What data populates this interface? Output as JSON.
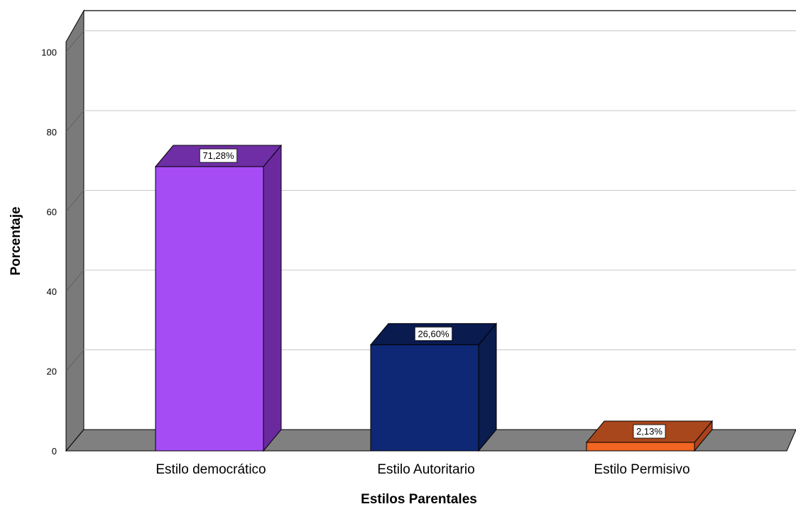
{
  "chart_data": {
    "type": "bar",
    "title": "",
    "xlabel": "Estilos Parentales",
    "ylabel": "Porcentaje",
    "categories": [
      "Estilo democrático",
      "Estilo Autoritario",
      "Estilo Permisivo"
    ],
    "values": [
      71.28,
      26.6,
      2.13
    ],
    "data_labels": [
      "71,28%",
      "26,60%",
      "2,13%"
    ],
    "y_ticks": [
      "0",
      "20",
      "40",
      "60",
      "80",
      "100"
    ],
    "ylim": [
      0,
      110
    ],
    "grid": true,
    "style_3d": true,
    "colors": {
      "bars": [
        "#a54cf5",
        "#0e2875",
        "#f26522"
      ],
      "bars_side": [
        "#6a2a9e",
        "#0b1c4e",
        "#a8421a"
      ],
      "bars_top": [
        "#6f2ea5",
        "#0a1b50",
        "#a8471c"
      ],
      "wall": "#7a7a7a",
      "floor": "#808080",
      "gridline": "#c8c8c8",
      "background": "#ffffff"
    }
  }
}
